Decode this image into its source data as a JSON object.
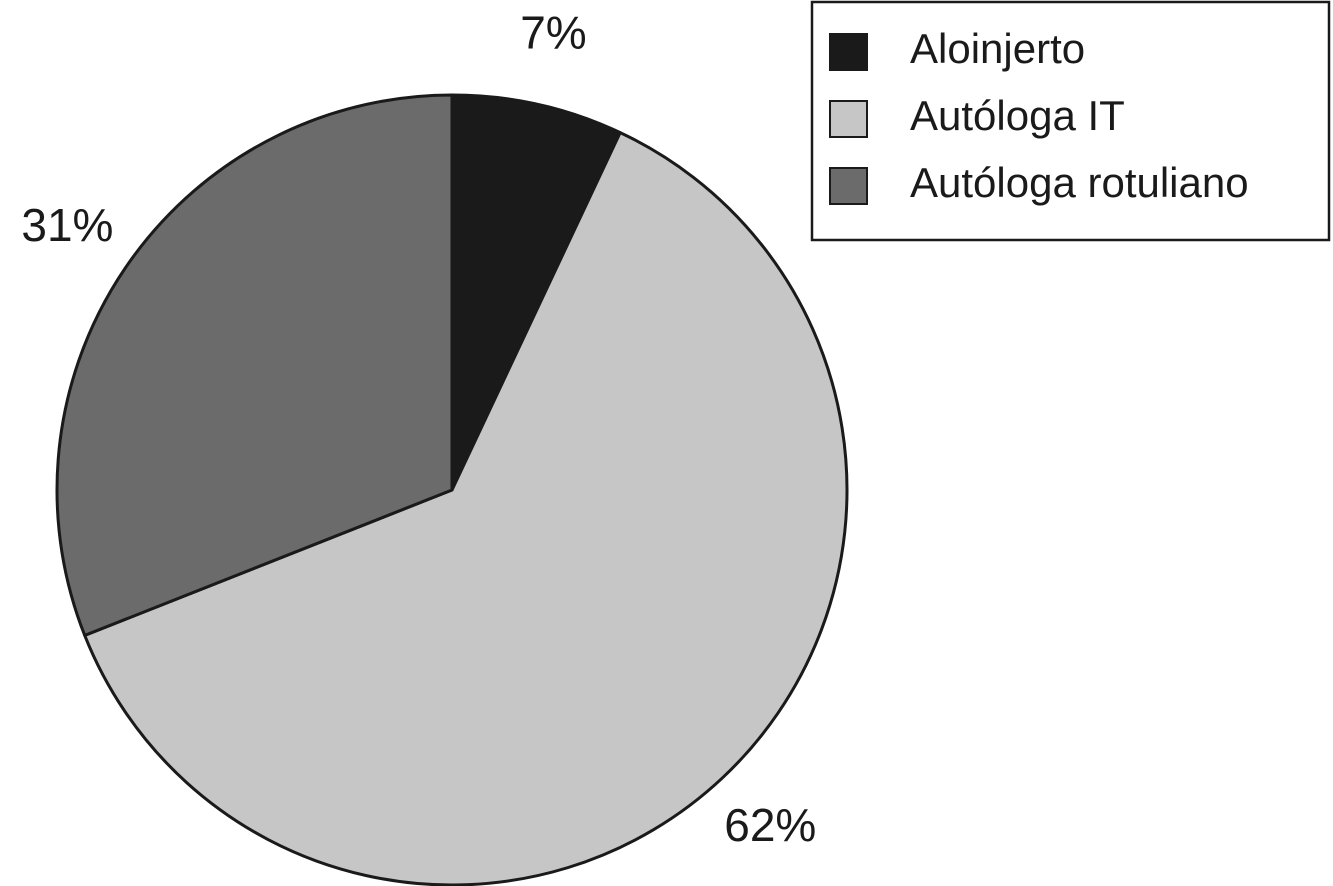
{
  "chart_data": {
    "type": "pie",
    "categories": [
      "Aloinjerto",
      "Autóloga IT",
      "Autóloga rotuliano"
    ],
    "values": [
      7,
      62,
      31
    ],
    "value_labels": [
      "7%",
      "62%",
      "31%"
    ],
    "colors": [
      "#1a1a1a",
      "#c6c6c6",
      "#6b6b6b"
    ],
    "legend": "top-right"
  }
}
